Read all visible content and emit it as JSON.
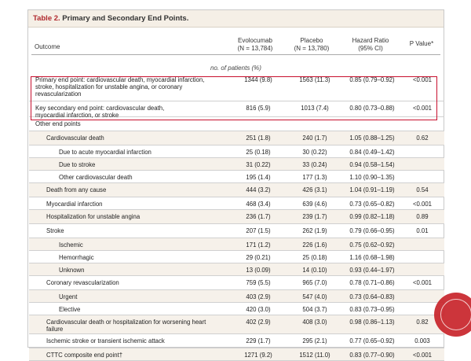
{
  "table": {
    "title_label": "Table 2.",
    "title_text": " Primary and Secondary End Points.",
    "headers": {
      "outcome": "Outcome",
      "evo_name": "Evolocumab",
      "evo_n": "(N = 13,784)",
      "pla_name": "Placebo",
      "pla_n": "(N = 13,780)",
      "hr_name": "Hazard Ratio",
      "hr_ci": "(95% CI)",
      "p": "P Value*"
    },
    "subheader": "no. of patients (%)"
  },
  "rows": [
    {
      "label": "Primary end point: cardiovascular death, myocardial infarction, stroke, hospitalization for unstable angina, or coronary revascularization",
      "evo": "1344 (9.8)",
      "pla": "1563 (11.3)",
      "hr": "0.85 (0.79–0.92)",
      "p": "<0.001"
    },
    {
      "label": "Key secondary end point: cardiovascular death, myocardial infarction, or stroke",
      "evo": "816 (5.9)",
      "pla": "1013 (7.4)",
      "hr": "0.80 (0.73–0.88)",
      "p": "<0.001"
    },
    {
      "label": "Other end points",
      "evo": "",
      "pla": "",
      "hr": "",
      "p": ""
    },
    {
      "label": "Cardiovascular death",
      "evo": "251 (1.8)",
      "pla": "240 (1.7)",
      "hr": "1.05 (0.88–1.25)",
      "p": "0.62"
    },
    {
      "label": "Due to acute myocardial infarction",
      "evo": "25 (0.18)",
      "pla": "30 (0.22)",
      "hr": "0.84 (0.49–1.42)",
      "p": ""
    },
    {
      "label": "Due to stroke",
      "evo": "31 (0.22)",
      "pla": "33 (0.24)",
      "hr": "0.94 (0.58–1.54)",
      "p": ""
    },
    {
      "label": "Other cardiovascular death",
      "evo": "195 (1.4)",
      "pla": "177 (1.3)",
      "hr": "1.10 (0.90–1.35)",
      "p": ""
    },
    {
      "label": "Death from any cause",
      "evo": "444 (3.2)",
      "pla": "426 (3.1)",
      "hr": "1.04 (0.91–1.19)",
      "p": "0.54"
    },
    {
      "label": "Myocardial infarction",
      "evo": "468 (3.4)",
      "pla": "639 (4.6)",
      "hr": "0.73 (0.65–0.82)",
      "p": "<0.001"
    },
    {
      "label": "Hospitalization for unstable angina",
      "evo": "236 (1.7)",
      "pla": "239 (1.7)",
      "hr": "0.99 (0.82–1.18)",
      "p": "0.89"
    },
    {
      "label": "Stroke",
      "evo": "207 (1.5)",
      "pla": "262 (1.9)",
      "hr": "0.79 (0.66–0.95)",
      "p": "0.01"
    },
    {
      "label": "Ischemic",
      "evo": "171 (1.2)",
      "pla": "226 (1.6)",
      "hr": "0.75 (0.62–0.92)",
      "p": ""
    },
    {
      "label": "Hemorrhagic",
      "evo": "29 (0.21)",
      "pla": "25 (0.18)",
      "hr": "1.16 (0.68–1.98)",
      "p": ""
    },
    {
      "label": "Unknown",
      "evo": "13 (0.09)",
      "pla": "14 (0.10)",
      "hr": "0.93 (0.44–1.97)",
      "p": ""
    },
    {
      "label": "Coronary revascularization",
      "evo": "759 (5.5)",
      "pla": "965 (7.0)",
      "hr": "0.78 (0.71–0.86)",
      "p": "<0.001"
    },
    {
      "label": "Urgent",
      "evo": "403 (2.9)",
      "pla": "547 (4.0)",
      "hr": "0.73 (0.64–0.83)",
      "p": ""
    },
    {
      "label": "Elective",
      "evo": "420 (3.0)",
      "pla": "504 (3.7)",
      "hr": "0.83 (0.73–0.95)",
      "p": ""
    },
    {
      "label": "Cardiovascular death or hospitalization for worsening heart failure",
      "evo": "402 (2.9)",
      "pla": "408 (3.0)",
      "hr": "0.98 (0.86–1.13)",
      "p": "0.82"
    },
    {
      "label": "Ischemic stroke or transient ischemic attack",
      "evo": "229 (1.7)",
      "pla": "295 (2.1)",
      "hr": "0.77 (0.65–0.92)",
      "p": "0.003"
    },
    {
      "label": "CTTC composite end point†",
      "evo": "1271 (9.2)",
      "pla": "1512 (11.0)",
      "hr": "0.83 (0.77–0.90)",
      "p": "<0.001"
    }
  ],
  "colors": {
    "title_accent": "#b0292e",
    "highlight": "#c8102e",
    "shade": "#f6f1ea"
  }
}
